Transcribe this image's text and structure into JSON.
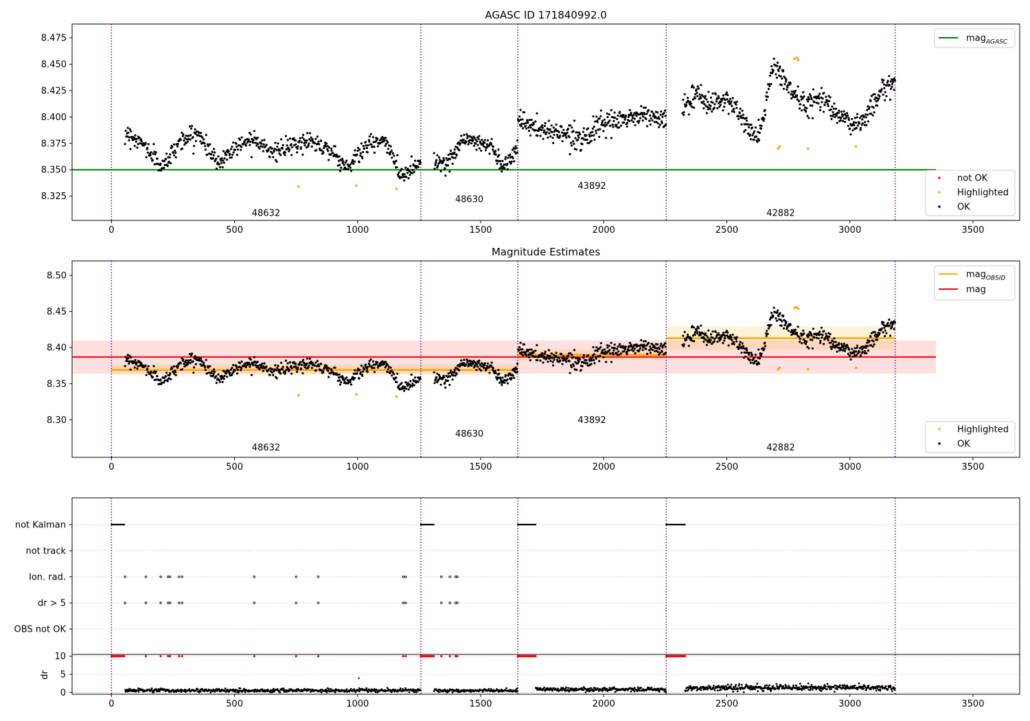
{
  "chart_data": [
    {
      "type": "scatter",
      "title": "AGASC ID 171840992.0",
      "xlim": [
        -160,
        3690
      ],
      "ylim": [
        8.302,
        8.488
      ],
      "x_ticks": [
        0,
        500,
        1000,
        1500,
        2000,
        2500,
        3000,
        3500
      ],
      "y_ticks": [
        8.325,
        8.35,
        8.375,
        8.4,
        8.425,
        8.45,
        8.475
      ],
      "y_tick_format": 3,
      "obs_boundaries": [
        0,
        1257,
        1651,
        2254,
        3184
      ],
      "obsid_labels": [
        {
          "text": "48632",
          "x": 628,
          "y": 8.309
        },
        {
          "text": "48630",
          "x": 1454,
          "y": 8.322
        },
        {
          "text": "43892",
          "x": 1952,
          "y": 8.335
        },
        {
          "text": "42882",
          "x": 2719,
          "y": 8.309
        }
      ],
      "hlines": [
        {
          "name": "mag_AGASC",
          "y": 8.35,
          "x0": -160,
          "x1": 3350,
          "color": "#008000"
        }
      ],
      "scatter_segments": [
        {
          "series": "OK",
          "x": [
            55,
            1257
          ],
          "anchors": [
            8.386,
            8.374,
            8.352,
            8.378,
            8.384,
            8.356,
            8.372,
            8.381,
            8.366,
            8.372,
            8.378,
            8.37,
            8.352,
            8.372,
            8.378,
            8.344,
            8.358
          ],
          "jitter": 0.007,
          "count": 560
        },
        {
          "series": "OK",
          "x": [
            1310,
            1651
          ],
          "anchors": [
            8.36,
            8.354,
            8.38,
            8.376,
            8.374,
            8.352,
            8.374
          ],
          "jitter": 0.007,
          "count": 170
        },
        {
          "series": "OK",
          "x": [
            1651,
            2254
          ],
          "anchors": [
            8.398,
            8.387,
            8.386,
            8.38,
            8.392,
            8.398,
            8.402,
            8.396
          ],
          "jitter": 0.008,
          "count": 300
        },
        {
          "series": "OK",
          "x": [
            2320,
            3184
          ],
          "anchors": [
            8.41,
            8.42,
            8.412,
            8.418,
            8.396,
            8.378,
            8.45,
            8.428,
            8.41,
            8.42,
            8.408,
            8.392,
            8.398,
            8.424,
            8.434
          ],
          "jitter": 0.009,
          "count": 450
        }
      ],
      "highlighted_points": [
        {
          "x": 760,
          "y": 8.334
        },
        {
          "x": 995,
          "y": 8.335
        },
        {
          "x": 1158,
          "y": 8.332
        },
        {
          "x": 2708,
          "y": 8.37
        },
        {
          "x": 2715,
          "y": 8.372
        },
        {
          "x": 2775,
          "y": 8.455
        },
        {
          "x": 2785,
          "y": 8.456
        },
        {
          "x": 2790,
          "y": 8.454
        },
        {
          "x": 2830,
          "y": 8.37
        },
        {
          "x": 3025,
          "y": 8.372
        }
      ],
      "legend_upper": [
        {
          "label": "mag",
          "subscript": "AGASC",
          "kind": "line",
          "color": "#008000"
        }
      ],
      "legend_lower": [
        {
          "label": "not OK",
          "kind": "point",
          "color": "#ff0000"
        },
        {
          "label": "Highlighted",
          "kind": "point",
          "color": "#ffa500"
        },
        {
          "label": "OK",
          "kind": "point",
          "color": "#000000"
        }
      ]
    },
    {
      "type": "scatter",
      "title": "Magnitude Estimates",
      "xlim": [
        -160,
        3690
      ],
      "ylim": [
        8.248,
        8.52
      ],
      "x_ticks": [
        0,
        500,
        1000,
        1500,
        2000,
        2500,
        3000,
        3500
      ],
      "y_ticks": [
        8.3,
        8.35,
        8.4,
        8.45,
        8.5
      ],
      "y_tick_format": 2,
      "obs_boundaries": [
        0,
        1257,
        1651,
        2254,
        3184
      ],
      "obsid_labels": [
        {
          "text": "48632",
          "x": 628,
          "y": 8.262
        },
        {
          "text": "48630",
          "x": 1454,
          "y": 8.281
        },
        {
          "text": "43892",
          "x": 1952,
          "y": 8.3
        },
        {
          "text": "42882",
          "x": 2719,
          "y": 8.262
        }
      ],
      "mag": {
        "y": 8.387,
        "band": [
          8.364,
          8.41
        ],
        "x0": -160,
        "x1": 3350,
        "color": "#ff0000"
      },
      "mag_obsid": [
        {
          "x0": 0,
          "x1": 1651,
          "y": 8.369,
          "band": [
            8.362,
            8.377
          ]
        },
        {
          "x0": 1651,
          "x1": 2254,
          "y": 8.39,
          "band": [
            8.383,
            8.398
          ]
        },
        {
          "x0": 2254,
          "x1": 3184,
          "y": 8.413,
          "band": [
            8.397,
            8.429
          ]
        }
      ],
      "legend_upper": [
        {
          "label": "mag",
          "subscript": "OBSID",
          "kind": "line",
          "color": "#ffa500"
        },
        {
          "label": "mag",
          "subscript": "",
          "kind": "line",
          "color": "#ff0000"
        }
      ],
      "legend_lower": [
        {
          "label": "Highlighted",
          "kind": "point",
          "color": "#ffa500"
        },
        {
          "label": "OK",
          "kind": "point",
          "color": "#000000"
        }
      ]
    },
    {
      "type": "scatter",
      "title": "",
      "xlim": [
        -160,
        3690
      ],
      "flag_rows": [
        "not Kalman",
        "not track",
        "Ion. rad.",
        "dr > 5",
        "OBS not OK"
      ],
      "flags": {
        "not Kalman": [
          [
            0,
            55
          ],
          [
            1257,
            1312
          ],
          [
            1651,
            1723
          ],
          [
            2254,
            2330
          ]
        ],
        "not track": [],
        "Ion. rad.": [
          55,
          140,
          200,
          230,
          238,
          275,
          287,
          580,
          750,
          840,
          1185,
          1195,
          1340,
          1375,
          1398,
          1405
        ],
        "dr > 5": [
          55,
          140,
          200,
          230,
          238,
          275,
          287,
          580,
          750,
          840,
          1185,
          1195,
          1340,
          1375,
          1398,
          1405
        ],
        "OBS not OK": []
      },
      "dr_axis": {
        "label": "dr",
        "ylim": [
          -0.5,
          10.5
        ],
        "ticks": [
          0,
          5,
          10
        ]
      },
      "dr_at_10": {
        "ranges": [
          [
            0,
            55
          ],
          [
            1257,
            1312
          ],
          [
            1651,
            1723
          ],
          [
            2254,
            2330
          ]
        ],
        "points": [
          140,
          200,
          230,
          238,
          275,
          287,
          580,
          750,
          840,
          1185,
          1195,
          1340,
          1375,
          1398,
          1405
        ]
      },
      "dr_outlier": {
        "x": 1005,
        "y": 3.9
      },
      "dr_segments": [
        {
          "x": [
            55,
            1257
          ],
          "base": 0.55,
          "jitter": 0.5,
          "count": 520
        },
        {
          "x": [
            1310,
            1651
          ],
          "base": 0.5,
          "jitter": 0.45,
          "count": 150
        },
        {
          "x": [
            1723,
            2254
          ],
          "base": 0.8,
          "jitter": 0.6,
          "count": 240
        },
        {
          "x": [
            2330,
            3184
          ],
          "base": 1.3,
          "jitter": 0.8,
          "count": 420
        }
      ],
      "x_ticks": [
        0,
        500,
        1000,
        1500,
        2000,
        2500,
        3000,
        3500
      ]
    }
  ]
}
